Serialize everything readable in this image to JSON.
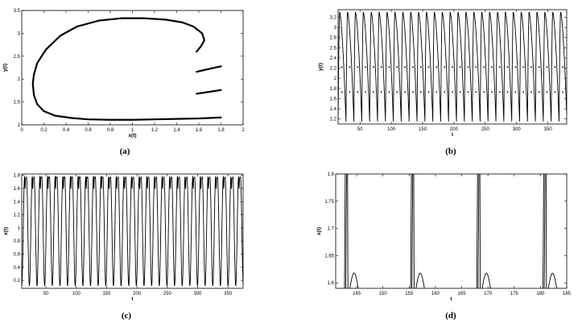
{
  "chart_data": [
    {
      "id": "a",
      "type": "line",
      "caption": "(a)",
      "xlabel": "x(t)",
      "ylabel": "y(t)",
      "xlim": [
        0,
        2
      ],
      "ylim": [
        1,
        3.5
      ],
      "xticks": [
        "0",
        "0.2",
        "0.4",
        "0.6",
        "0.8",
        "1",
        "1.2",
        "1.4",
        "1.6",
        "1.8",
        "2"
      ],
      "yticks": [
        "1",
        "1.5",
        "2",
        "2.5",
        "3",
        "3.5"
      ],
      "grid": false,
      "series": [
        {
          "x": [
            1.58,
            1.62,
            1.65,
            1.63,
            1.55,
            1.45,
            1.3,
            1.1,
            0.9,
            0.7,
            0.5,
            0.35,
            0.22,
            0.14,
            0.11,
            0.1,
            0.11,
            0.14,
            0.2,
            0.3,
            0.45,
            0.6,
            0.8,
            1.0,
            1.2,
            1.4,
            1.6,
            1.8
          ],
          "y": [
            2.6,
            2.72,
            2.85,
            3.0,
            3.15,
            3.24,
            3.3,
            3.33,
            3.33,
            3.28,
            3.15,
            2.95,
            2.65,
            2.35,
            2.1,
            1.9,
            1.65,
            1.45,
            1.3,
            1.2,
            1.15,
            1.12,
            1.11,
            1.11,
            1.12,
            1.13,
            1.14,
            1.16
          ]
        },
        {
          "x": [
            1.58,
            1.8
          ],
          "y": [
            2.16,
            2.28
          ]
        },
        {
          "x": [
            1.58,
            1.8
          ],
          "y": [
            1.68,
            1.76
          ]
        }
      ]
    },
    {
      "id": "b",
      "type": "line",
      "caption": "(b)",
      "xlabel": "t",
      "ylabel": "y(t)",
      "xlim": [
        15,
        380
      ],
      "ylim": [
        1.1,
        3.35
      ],
      "xticks": [
        "50",
        "100",
        "150",
        "200",
        "250",
        "300",
        "350"
      ],
      "xtick_values": [
        50,
        100,
        150,
        200,
        250,
        300,
        350
      ],
      "yticks": [
        "1.2",
        "1.4",
        "1.6",
        "1.8",
        "2",
        "2.2",
        "2.4",
        "2.6",
        "2.8",
        "3",
        "3.2"
      ],
      "ytick_values": [
        1.2,
        1.4,
        1.6,
        1.8,
        2,
        2.2,
        2.4,
        2.6,
        2.8,
        3,
        3.2
      ],
      "grid": false,
      "periodic": {
        "period": 12.6,
        "t_start": 15,
        "min": 1.15,
        "max": 3.3
      }
    },
    {
      "id": "c",
      "type": "line",
      "caption": "(c)",
      "xlabel": "t",
      "ylabel": "x(t)",
      "xlim": [
        10,
        375
      ],
      "ylim": [
        0.08,
        1.82
      ],
      "xticks": [
        "50",
        "100",
        "150",
        "200",
        "250",
        "300",
        "350"
      ],
      "xtick_values": [
        50,
        100,
        150,
        200,
        250,
        300,
        350
      ],
      "yticks": [
        "0.2",
        "0.4",
        "0.6",
        "0.8",
        "1",
        "1.2",
        "1.4",
        "1.6",
        "1.8"
      ],
      "ytick_values": [
        0.2,
        0.4,
        0.6,
        0.8,
        1,
        1.2,
        1.4,
        1.6,
        1.8
      ],
      "grid": false,
      "periodic": {
        "period": 12.6,
        "t_start": 10,
        "min": 0.12,
        "max": 1.78
      }
    },
    {
      "id": "d",
      "type": "line",
      "caption": "(d)",
      "xlabel": "t",
      "ylabel": "x(t)",
      "xlim": [
        141,
        185
      ],
      "ylim": [
        1.59,
        1.8
      ],
      "xticks": [
        "145",
        "150",
        "155",
        "160",
        "165",
        "170",
        "175",
        "180",
        "185"
      ],
      "xtick_values": [
        145,
        150,
        155,
        160,
        165,
        170,
        175,
        180,
        185
      ],
      "yticks": [
        "1.6",
        "1.65",
        "1.7",
        "1.75",
        "1.8"
      ],
      "ytick_values": [
        1.6,
        1.65,
        1.7,
        1.75,
        1.8
      ],
      "grid": false,
      "burst_times": [
        143.2,
        155.8,
        168.4,
        181.0
      ],
      "hump_height": 1.618
    }
  ]
}
